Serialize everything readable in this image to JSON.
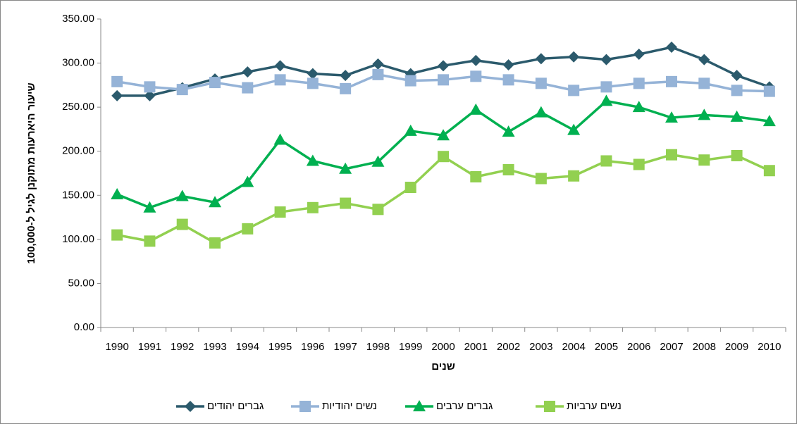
{
  "chart_data": {
    "type": "line",
    "y_label": "שיעור היארעות מתוקנן לגיל ל-100,000",
    "x_label": "שנים",
    "categories": [
      "1990",
      "1991",
      "1992",
      "1993",
      "1994",
      "1995",
      "1996",
      "1997",
      "1998",
      "1999",
      "2000",
      "2001",
      "2002",
      "2003",
      "2004",
      "2005",
      "2006",
      "2007",
      "2008",
      "2009",
      "2010"
    ],
    "series": [
      {
        "name": "גברים יהודים",
        "color": "#2b5a6c",
        "marker": "diamond",
        "values": [
          263,
          263,
          272,
          282,
          290,
          297,
          288,
          286,
          299,
          288,
          297,
          303,
          298,
          305,
          307,
          304,
          310,
          318,
          304,
          286,
          273
        ]
      },
      {
        "name": "נשים יהודיות",
        "color": "#95b3d7",
        "marker": "square",
        "values": [
          279,
          273,
          270,
          278,
          272,
          281,
          277,
          271,
          287,
          280,
          281,
          285,
          281,
          277,
          269,
          273,
          277,
          279,
          277,
          269,
          268
        ]
      },
      {
        "name": "גברים ערבים",
        "color": "#00b050",
        "marker": "triangle",
        "values": [
          151,
          136,
          149,
          142,
          165,
          213,
          189,
          180,
          188,
          223,
          218,
          247,
          222,
          244,
          224,
          257,
          250,
          238,
          241,
          239,
          234
        ]
      },
      {
        "name": "נשים ערביות",
        "color": "#92d050",
        "marker": "square",
        "values": [
          105,
          98,
          117,
          96,
          112,
          131,
          136,
          141,
          134,
          159,
          194,
          171,
          179,
          169,
          172,
          189,
          185,
          196,
          190,
          195,
          178
        ]
      }
    ],
    "ylim": [
      0,
      350
    ],
    "yticks": [
      {
        "value": 0,
        "label": "0.00"
      },
      {
        "value": 50,
        "label": "50.00"
      },
      {
        "value": 100,
        "label": "100.00"
      },
      {
        "value": 150,
        "label": "150.00"
      },
      {
        "value": 200,
        "label": "200.00"
      },
      {
        "value": 250,
        "label": "250.00"
      },
      {
        "value": 300,
        "label": "300.00"
      },
      {
        "value": 350,
        "label": "350.00"
      }
    ],
    "legend": "bottom"
  }
}
